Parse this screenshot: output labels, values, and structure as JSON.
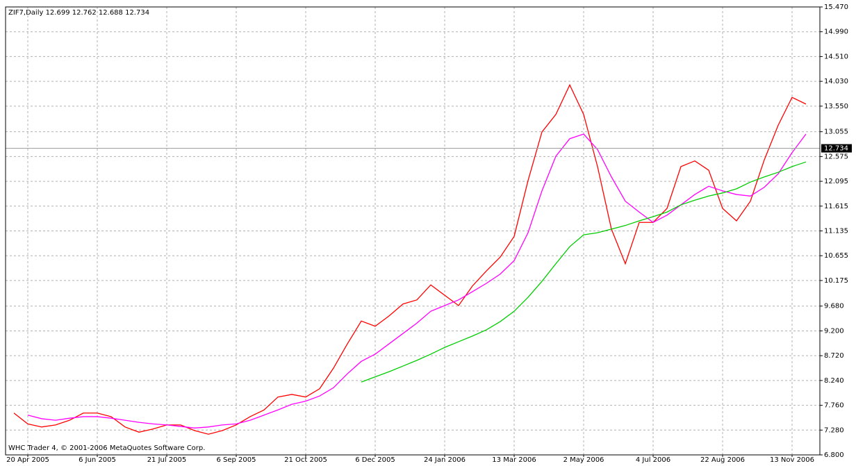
{
  "chart_data": {
    "type": "line",
    "title": "ZIF7,Daily  12.699 12.762 12.688 12.734",
    "footer": "WHC Trader 4, © 2001-2006 MetaQuotes Software Corp.",
    "categories": [
      null,
      "20 Apr 2005",
      null,
      null,
      null,
      null,
      "6 Jun 2005",
      null,
      null,
      null,
      null,
      "21 Jul 2005",
      null,
      null,
      null,
      null,
      "6 Sep 2005",
      null,
      null,
      null,
      null,
      "21 Oct 2005",
      null,
      null,
      null,
      null,
      "6 Dec 2005",
      null,
      null,
      null,
      null,
      "24 Jan 2006",
      null,
      null,
      null,
      null,
      "13 Mar 2006",
      null,
      null,
      null,
      null,
      "2 May 2006",
      null,
      null,
      null,
      null,
      "4 Jul 2006",
      null,
      null,
      null,
      null,
      "22 Aug 2006",
      null,
      null,
      null,
      null,
      "13 Nov 2006",
      null
    ],
    "series": [
      {
        "color": "#ff0000",
        "values": [
          7.61,
          7.4,
          7.34,
          7.38,
          7.47,
          7.61,
          7.61,
          7.54,
          7.34,
          7.24,
          7.3,
          7.38,
          7.38,
          7.27,
          7.2,
          7.27,
          7.38,
          7.54,
          7.67,
          7.92,
          7.97,
          7.92,
          8.08,
          8.48,
          8.95,
          9.39,
          9.29,
          9.49,
          9.72,
          9.8,
          10.09,
          9.89,
          9.69,
          10.07,
          10.36,
          10.63,
          11.03,
          12.11,
          13.05,
          13.39,
          13.96,
          13.39,
          12.38,
          11.17,
          10.5,
          11.3,
          11.3,
          11.57,
          12.38,
          12.49,
          12.31,
          11.57,
          11.33,
          11.71,
          12.51,
          13.18,
          13.72,
          13.59
        ]
      },
      {
        "color": "#ff00ff",
        "values": [
          null,
          7.57,
          7.5,
          7.47,
          7.51,
          7.54,
          7.54,
          7.51,
          7.47,
          7.43,
          7.4,
          7.38,
          7.35,
          7.32,
          7.34,
          7.38,
          7.4,
          7.47,
          7.57,
          7.67,
          7.78,
          7.84,
          7.94,
          8.1,
          8.37,
          8.61,
          8.75,
          8.95,
          9.15,
          9.35,
          9.58,
          9.69,
          9.8,
          9.96,
          10.12,
          10.3,
          10.56,
          11.1,
          11.91,
          12.58,
          12.92,
          13.01,
          12.71,
          12.18,
          11.71,
          11.5,
          11.3,
          11.44,
          11.64,
          11.84,
          12.0,
          11.91,
          11.84,
          11.81,
          11.98,
          12.24,
          12.65,
          13.01
        ]
      },
      {
        "color": "#00cc00",
        "values": [
          null,
          null,
          null,
          null,
          null,
          null,
          null,
          null,
          null,
          null,
          null,
          null,
          null,
          null,
          null,
          null,
          null,
          null,
          null,
          null,
          null,
          null,
          null,
          null,
          null,
          8.21,
          8.31,
          8.41,
          8.52,
          8.63,
          8.75,
          8.88,
          8.99,
          9.1,
          9.22,
          9.38,
          9.58,
          9.85,
          10.16,
          10.5,
          10.83,
          11.06,
          11.1,
          11.17,
          11.24,
          11.33,
          11.41,
          11.5,
          11.64,
          11.73,
          11.81,
          11.87,
          11.95,
          12.08,
          12.18,
          12.27,
          12.38,
          12.47
        ]
      }
    ],
    "last_price": {
      "value": 12.734,
      "label": "12.734"
    },
    "ylim": [
      6.8,
      15.47
    ],
    "yticks": [
      {
        "value": 15.47,
        "label": "15.470"
      },
      {
        "value": 14.99,
        "label": "14.990"
      },
      {
        "value": 14.51,
        "label": "14.510"
      },
      {
        "value": 14.03,
        "label": "14.030"
      },
      {
        "value": 13.55,
        "label": "13.550"
      },
      {
        "value": 13.055,
        "label": "13.055"
      },
      {
        "value": 12.575,
        "label": "12.575"
      },
      {
        "value": 12.095,
        "label": "12.095"
      },
      {
        "value": 11.615,
        "label": "11.615"
      },
      {
        "value": 11.135,
        "label": "11.135"
      },
      {
        "value": 10.655,
        "label": "10.655"
      },
      {
        "value": 10.175,
        "label": "10.175"
      },
      {
        "value": 9.68,
        "label": "9.680"
      },
      {
        "value": 9.2,
        "label": "9.200"
      },
      {
        "value": 8.72,
        "label": "8.720"
      },
      {
        "value": 8.24,
        "label": "8.240"
      },
      {
        "value": 7.76,
        "label": "7.760"
      },
      {
        "value": 7.28,
        "label": "7.280"
      },
      {
        "value": 6.8,
        "label": "6.800"
      }
    ],
    "grid": true
  }
}
